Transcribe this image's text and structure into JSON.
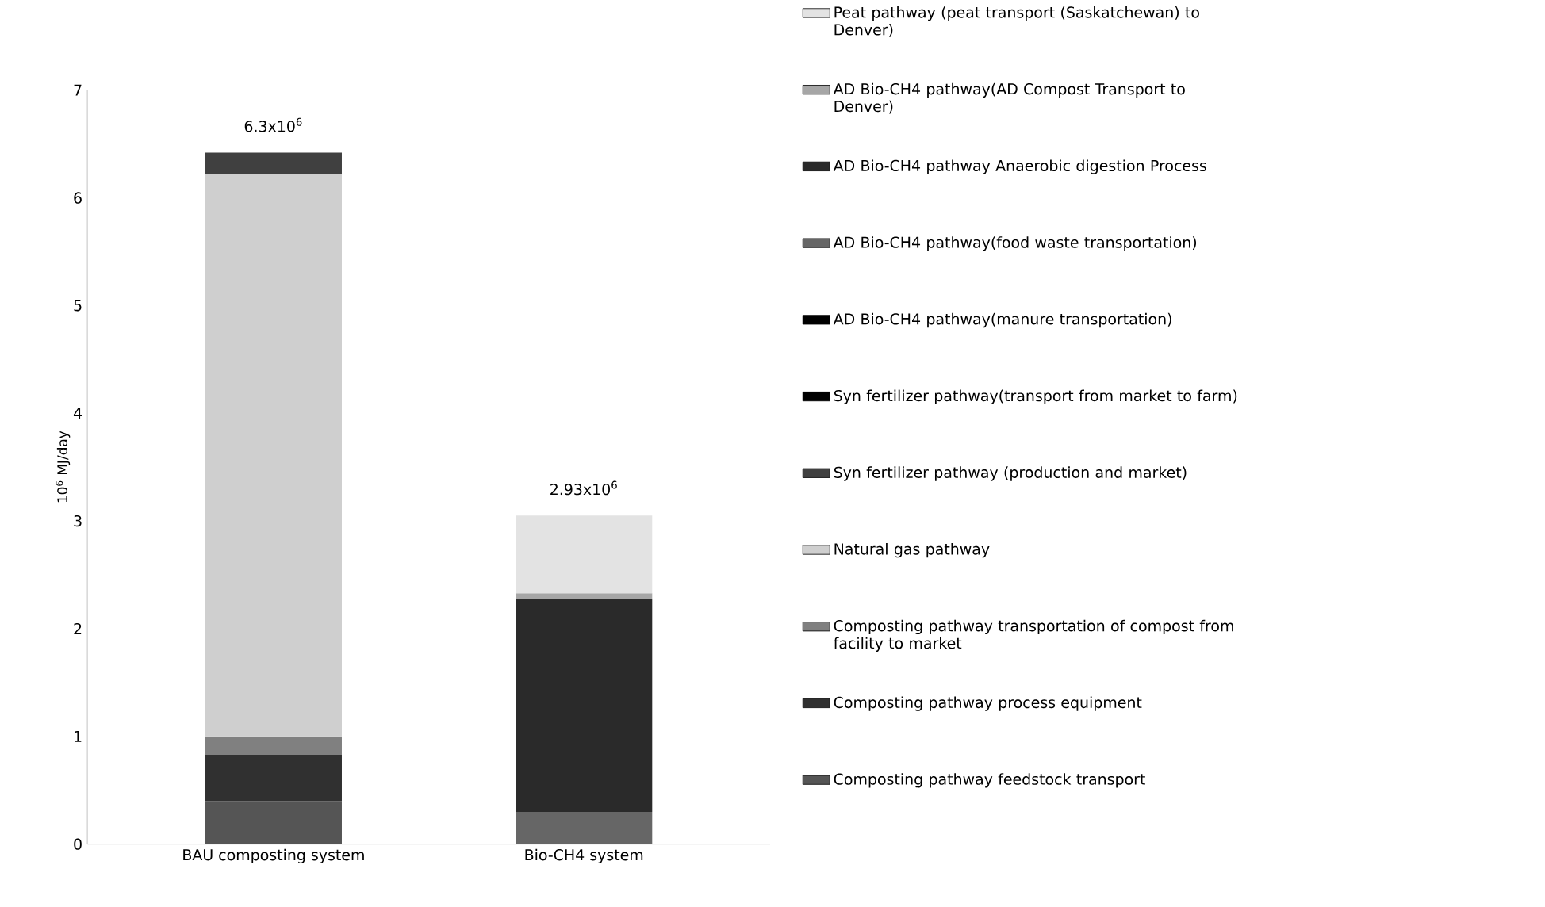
{
  "chart_data": {
    "type": "bar",
    "stacked": true,
    "ylabel": "10$^{6}$ MJ/day",
    "categories": [
      "BAU composting system",
      "Bio-CH4 system"
    ],
    "ylim": [
      0,
      7
    ],
    "yticks": [
      0,
      1,
      2,
      3,
      4,
      5,
      6,
      7
    ],
    "legend": "right",
    "grid": false,
    "series": [
      {
        "name": "Composting pathway feedstock transport",
        "color": "#555555",
        "values": [
          0.4,
          null
        ]
      },
      {
        "name": "Composting pathway process equipment",
        "color": "#303030",
        "values": [
          0.43,
          null
        ]
      },
      {
        "name": "Composting pathway transportation of compost from facility to market",
        "color": "#808080",
        "values": [
          0.17,
          null
        ]
      },
      {
        "name": "Natural gas pathway",
        "color": "#cfcfcf",
        "values": [
          5.22,
          null
        ]
      },
      {
        "name": "Syn fertilizer pathway (production and market)",
        "color": "#404040",
        "values": [
          0.2,
          null
        ]
      },
      {
        "name": "Syn fertilizer pathway(transport from market to farm)",
        "color": "#000000",
        "values": [
          0,
          null
        ]
      },
      {
        "name": "AD Bio-CH4 pathway(manure transportation)",
        "color": "#000000",
        "values": [
          null,
          0
        ]
      },
      {
        "name": "AD Bio-CH4 pathway(food waste transportation)",
        "color": "#666666",
        "values": [
          null,
          0.3
        ]
      },
      {
        "name": "AD Bio-CH4 pathway Anaerobic digestion Process",
        "color": "#2a2a2a",
        "values": [
          null,
          1.98
        ]
      },
      {
        "name": "AD Bio-CH4 pathway(AD Compost Transport to Denver)",
        "color": "#a6a6a6",
        "values": [
          null,
          0.05
        ]
      },
      {
        "name": "Peat pathway (peat transport (Saskatchewan) to Denver)",
        "color": "#e3e3e3",
        "values": [
          null,
          0.72
        ]
      }
    ],
    "annotations": [
      "6.3x10$^{6}$",
      "2.93x10$^{6}$"
    ]
  }
}
